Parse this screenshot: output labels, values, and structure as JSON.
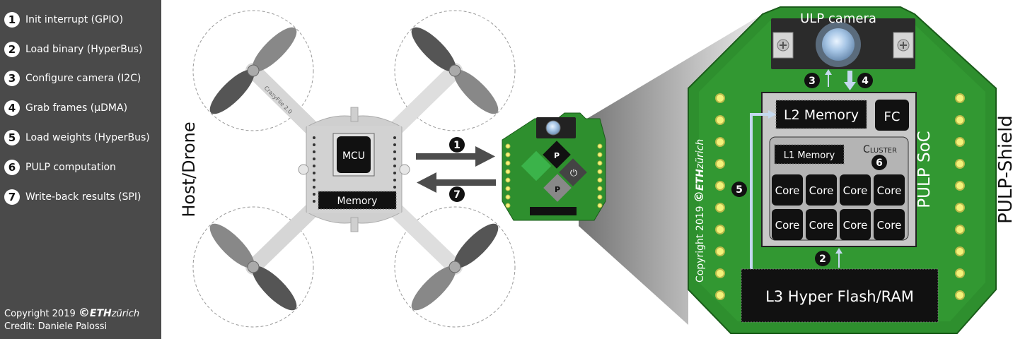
{
  "steps": [
    {
      "num": "1",
      "text": "Init interrupt (GPIO)"
    },
    {
      "num": "2",
      "text": "Load binary (HyperBus)"
    },
    {
      "num": "3",
      "text": "Configure camera (I2C)"
    },
    {
      "num": "4",
      "text": "Grab frames (µDMA)"
    },
    {
      "num": "5",
      "text": "Load weights (HyperBus)"
    },
    {
      "num": "6",
      "text": "PULP computation"
    },
    {
      "num": "7",
      "text": "Write-back results (SPI)"
    }
  ],
  "credit": {
    "copyright": "Copyright 2019",
    "copyright_symbol": "©",
    "eth": "ETH",
    "zurich": "zürich",
    "author": "Credit: Daniele Palossi"
  },
  "drone": {
    "host_label": "Host/Drone",
    "mcu_label": "MCU",
    "memory_label": "Memory",
    "frame_label": "CrazyFlie 2.0"
  },
  "shield_small": {
    "p_label": "P",
    "power_symbol": "⏻"
  },
  "arrows": {
    "to_shield": "1",
    "to_drone": "7"
  },
  "pulp_shield": {
    "title": "PULP-Shield",
    "camera_label": "ULP camera",
    "soc_label": "PULP SoC",
    "l2_label": "L2 Memory",
    "fc_label": "FC",
    "l1_label": "L1 Memory",
    "cluster_label": "Cluster",
    "cores": [
      "Core",
      "Core",
      "Core",
      "Core",
      "Core",
      "Core",
      "Core",
      "Core"
    ],
    "l3_label": "L3 Hyper Flash/RAM",
    "copyright": "Copyright 2019",
    "copyright_symbol": "©",
    "eth": "ETH",
    "zurich": "zürich",
    "markers": {
      "camera_config": "3",
      "grab_frames": "4",
      "load_binary": "2",
      "load_weights": "5",
      "computation": "6"
    }
  },
  "colors": {
    "sidebar_bg": "#4a4a4a",
    "pcb_green": "#2e8f2e",
    "pcb_green_light": "#3aa83a",
    "chip_black": "#111111",
    "soc_gray": "#c8c8c8",
    "arrow_light_blue": "#c5d9ef"
  }
}
